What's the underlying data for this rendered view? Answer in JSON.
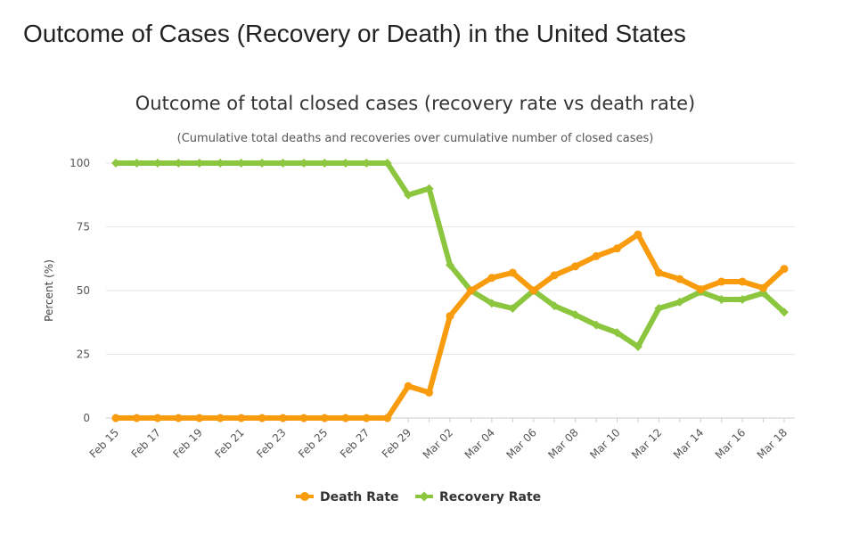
{
  "page": {
    "title": "Outcome of Cases (Recovery or Death) in the United States"
  },
  "chart_data": {
    "type": "line",
    "title": "Outcome of total closed cases (recovery rate vs death rate)",
    "subtitle": "(Cumulative total deaths and recoveries over cumulative number of closed cases)",
    "xlabel": "",
    "ylabel": "Percent (%)",
    "ylim": [
      0,
      100
    ],
    "yticks": [
      0,
      25,
      50,
      75,
      100
    ],
    "grid": true,
    "legend": "bottom-center",
    "x": [
      "Feb 15",
      "Feb 16",
      "Feb 17",
      "Feb 18",
      "Feb 19",
      "Feb 20",
      "Feb 21",
      "Feb 22",
      "Feb 23",
      "Feb 24",
      "Feb 25",
      "Feb 26",
      "Feb 27",
      "Feb 28",
      "Feb 29",
      "Mar 01",
      "Mar 02",
      "Mar 03",
      "Mar 04",
      "Mar 05",
      "Mar 06",
      "Mar 07",
      "Mar 08",
      "Mar 09",
      "Mar 10",
      "Mar 11",
      "Mar 12",
      "Mar 13",
      "Mar 14",
      "Mar 15",
      "Mar 16",
      "Mar 17",
      "Mar 18"
    ],
    "x_tick_labels": [
      "Feb 15",
      "Feb 17",
      "Feb 19",
      "Feb 21",
      "Feb 23",
      "Feb 25",
      "Feb 27",
      "Feb 29",
      "Mar 02",
      "Mar 04",
      "Mar 06",
      "Mar 08",
      "Mar 10",
      "Mar 12",
      "Mar 14",
      "Mar 16",
      "Mar 18"
    ],
    "series": [
      {
        "name": "Death Rate",
        "color": "#f89b0c",
        "marker": "circle",
        "values": [
          0,
          0,
          0,
          0,
          0,
          0,
          0,
          0,
          0,
          0,
          0,
          0,
          0,
          0,
          12.5,
          10,
          40,
          50,
          55,
          57,
          50,
          56,
          59.5,
          63.5,
          66.5,
          72,
          57,
          54.5,
          50.5,
          53.5,
          53.5,
          51,
          58.5
        ]
      },
      {
        "name": "Recovery Rate",
        "color": "#8cc63e",
        "marker": "diamond",
        "values": [
          100,
          100,
          100,
          100,
          100,
          100,
          100,
          100,
          100,
          100,
          100,
          100,
          100,
          100,
          87.5,
          90,
          60,
          50,
          45,
          43,
          50,
          44,
          40.5,
          36.5,
          33.5,
          28,
          43,
          45.5,
          49.5,
          46.5,
          46.5,
          49,
          41.5
        ]
      }
    ]
  }
}
